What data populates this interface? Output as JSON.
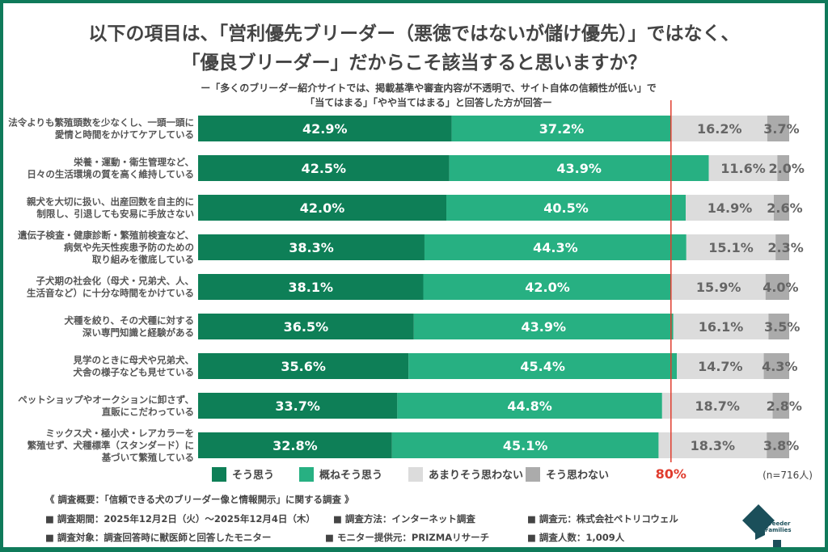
{
  "chart_data": {
    "type": "bar",
    "stacked": true,
    "orientation": "horizontal",
    "title": "以下の項目は、「営利優先ブリーダー（悪徳ではないが儲け優先）」ではなく、",
    "title2": "「優良ブリーダー」だからこそ該当すると思いますか？",
    "subtitle": "ー「多くのブリーダー紹介サイトでは、掲載基準や審査内容が不透明で、サイト自体の信頼性が低い」で",
    "subtitle2": "「当てはまる」「やや当てはまる」と回答した方が回答ー",
    "categories": [
      [
        "法令よりも繁殖頭数を少なくし、一頭一頭に",
        "愛情と時間をかけてケアしている"
      ],
      [
        "栄養・運動・衛生管理など、",
        "日々の生活環境の質を高く維持している"
      ],
      [
        "親犬を大切に扱い、出産回数を自主的に",
        "制限し、引退しても安易に手放さない"
      ],
      [
        "遺伝子検査・健康診断・繁殖前検査など、",
        "病気や先天性疾患予防のための",
        "取り組みを徹底している"
      ],
      [
        "子犬期の社会化（母犬・兄弟犬、人、",
        "生活音など）に十分な時間をかけている"
      ],
      [
        "犬種を絞り、その犬種に対する",
        "深い専門知識と経験がある"
      ],
      [
        "見学のときに母犬や兄弟犬、",
        "犬舎の様子なども見せている"
      ],
      [
        "ペットショップやオークションに卸さず、",
        "直販にこだわっている"
      ],
      [
        "ミックス犬・極小犬・レアカラーを",
        "繁殖せず、犬種標準（スタンダード）に",
        "基づいて繁殖している"
      ]
    ],
    "series": [
      {
        "name": "そう思う",
        "color": "#0e7f57",
        "values": [
          42.9,
          42.5,
          42.0,
          38.3,
          38.1,
          36.5,
          35.6,
          33.7,
          32.8
        ]
      },
      {
        "name": "概ねそう思う",
        "color": "#27b082",
        "values": [
          37.2,
          43.9,
          40.5,
          44.3,
          42.0,
          43.9,
          45.4,
          44.8,
          45.1
        ]
      },
      {
        "name": "あまりそう思わない",
        "color": "#dcdcdc",
        "values": [
          16.2,
          11.6,
          14.9,
          15.1,
          15.9,
          16.1,
          14.7,
          18.7,
          18.3
        ]
      },
      {
        "name": "そう思わない",
        "color": "#ababab",
        "values": [
          3.7,
          2.0,
          2.6,
          2.3,
          4.0,
          3.5,
          4.3,
          2.8,
          3.8
        ]
      }
    ],
    "xlim": [
      0,
      100
    ],
    "reference_line": {
      "value": 80,
      "label": "80%",
      "color": "#e03c2e"
    },
    "note": "(n=716人)",
    "legend": "bottom"
  },
  "footer": {
    "overview": "《 調査概要：「信頼できる犬のブリーダー像と情報開示」に関する調査 》",
    "items": [
      "■ 調査期間：2025年12月2日（火）～2025年12月4日（木）",
      "■ 調査方法：インターネット調査",
      "■ 調査元：株式会社ペトリコウェル",
      "■ 調査対象：調査回答時に獣医師と回答したモニター",
      "■ モニター提供元：PRIZMAリサーチ",
      "■ 調査人数：1,009人"
    ],
    "logo": "Breeder Families"
  }
}
